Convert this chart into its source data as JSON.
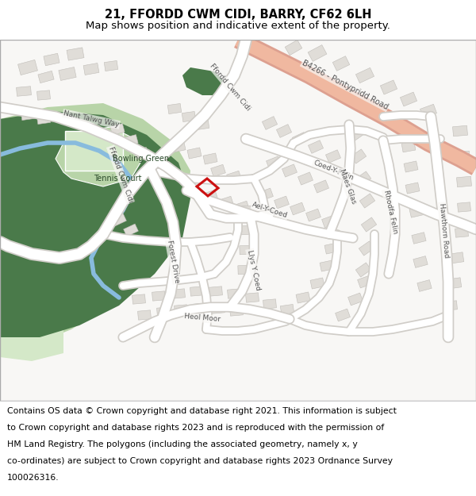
{
  "title_line1": "21, FFORDD CWM CIDI, BARRY, CF62 6LH",
  "title_line2": "Map shows position and indicative extent of the property.",
  "copyright_lines": [
    "Contains OS data © Crown copyright and database right 2021. This information is subject",
    "to Crown copyright and database rights 2023 and is reproduced with the permission of",
    "HM Land Registry. The polygons (including the associated geometry, namely x, y",
    "co-ordinates) are subject to Crown copyright and database rights 2023 Ordnance Survey",
    "100026316."
  ],
  "title_fontsize": 10.5,
  "subtitle_fontsize": 9.5,
  "copyright_fontsize": 7.8,
  "map_bg_color": "#f5f3f0",
  "road_color": "#ffffff",
  "road_outline_color": "#cccccc",
  "dark_green": "#4a7a4a",
  "mid_green": "#6aaa6a",
  "light_green": "#b8d4a8",
  "very_light_green": "#d4e8c8",
  "blue_stream": "#88bbdd",
  "highlight_road_fill": "#f0b8a0",
  "highlight_road_edge": "#dda090",
  "building_color": "#e0ddd8",
  "building_edge": "#c0bdb8",
  "plot_edge": "#cc1111",
  "footer_bg": "#ffffff",
  "header_bg": "#ffffff",
  "label_color": "#555555"
}
